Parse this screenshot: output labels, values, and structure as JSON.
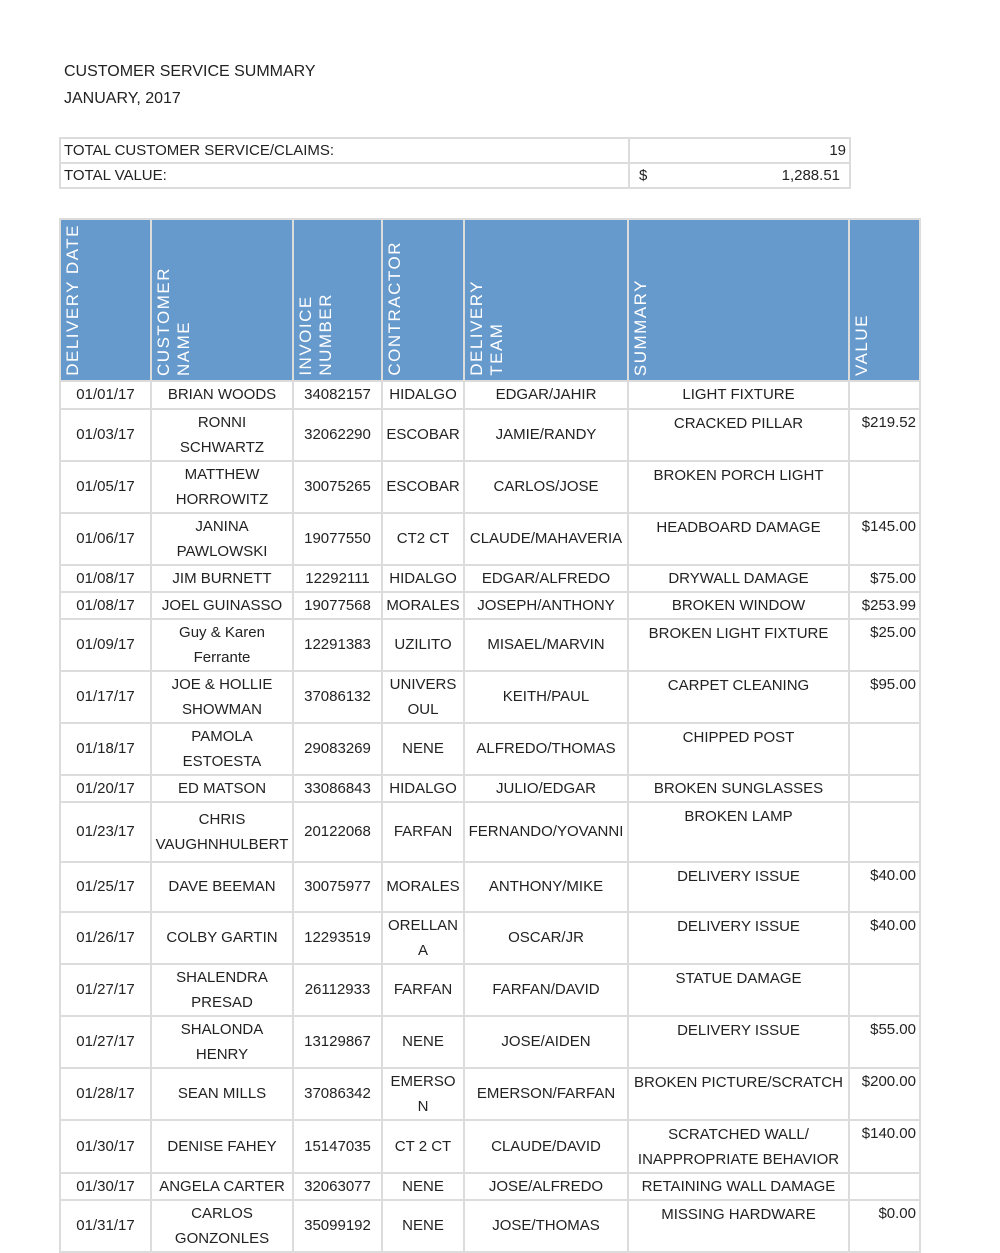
{
  "title": "CUSTOMER SERVICE SUMMARY",
  "subtitle": "JANUARY, 2017",
  "totals": {
    "claims_label": "TOTAL CUSTOMER SERVICE/CLAIMS:",
    "claims_value": "19",
    "value_label": "TOTAL VALUE:",
    "value_currency": "$",
    "value_amount": "1,288.51"
  },
  "header_color": "#6699cc",
  "columns": [
    "DELIVERY DATE",
    "CUSTOMER\nNAME",
    "INVOICE\nNUMBER",
    "CONTRACTOR",
    "DELIVERY\nTEAM",
    "SUMMARY",
    "VALUE"
  ],
  "rows": [
    [
      "01/01/17",
      "BRIAN WOODS",
      "34082157",
      "HIDALGO",
      "EDGAR/JAHIR",
      "LIGHT FIXTURE",
      ""
    ],
    [
      "01/03/17",
      "RONNI SCHWARTZ",
      "32062290",
      "ESCOBAR",
      "JAMIE/RANDY",
      "CRACKED PILLAR",
      "$219.52"
    ],
    [
      "01/05/17",
      "MATTHEW HORROWITZ",
      "30075265",
      "ESCOBAR",
      "CARLOS/JOSE",
      "BROKEN PORCH LIGHT",
      ""
    ],
    [
      "01/06/17",
      "JANINA PAWLOWSKI",
      "19077550",
      "CT2 CT",
      "CLAUDE/MAHAVERIA",
      "HEADBOARD DAMAGE",
      "$145.00"
    ],
    [
      "01/08/17",
      "JIM BURNETT",
      "12292111",
      "HIDALGO",
      "EDGAR/ALFREDO",
      "DRYWALL DAMAGE",
      "$75.00"
    ],
    [
      "01/08/17",
      "JOEL GUINASSO",
      "19077568",
      "MORALES",
      "JOSEPH/ANTHONY",
      "BROKEN WINDOW",
      "$253.99"
    ],
    [
      "01/09/17",
      "Guy & Karen Ferrante",
      "12291383",
      "UZILITO",
      "MISAEL/MARVIN",
      "BROKEN LIGHT FIXTURE",
      "$25.00"
    ],
    [
      "01/17/17",
      "JOE & HOLLIE SHOWMAN",
      "37086132",
      "UNIVERSOUL",
      "KEITH/PAUL",
      "CARPET CLEANING",
      "$95.00"
    ],
    [
      "01/18/17",
      "PAMOLA ESTOESTA",
      "29083269",
      "NENE",
      "ALFREDO/THOMAS",
      "CHIPPED POST",
      ""
    ],
    [
      "01/20/17",
      "ED MATSON",
      "33086843",
      "HIDALGO",
      "JULIO/EDGAR",
      "BROKEN SUNGLASSES",
      ""
    ],
    [
      "01/23/17",
      "CHRIS VAUGHNHULBERT",
      "20122068",
      "FARFAN",
      "FERNANDO/YOVANNI",
      "BROKEN LAMP",
      ""
    ],
    [
      "01/25/17",
      "DAVE BEEMAN",
      "30075977",
      "MORALES",
      "ANTHONY/MIKE",
      "DELIVERY ISSUE",
      "$40.00"
    ],
    [
      "01/26/17",
      "COLBY GARTIN",
      "12293519",
      "ORELLANA",
      "OSCAR/JR",
      "DELIVERY ISSUE",
      "$40.00"
    ],
    [
      "01/27/17",
      "SHALENDRA PRESAD",
      "26112933",
      "FARFAN",
      "FARFAN/DAVID",
      "STATUE DAMAGE",
      ""
    ],
    [
      "01/27/17",
      "SHALONDA HENRY",
      "13129867",
      "NENE",
      "JOSE/AIDEN",
      "DELIVERY ISSUE",
      "$55.00"
    ],
    [
      "01/28/17",
      "SEAN MILLS",
      "37086342",
      "EMERSON",
      "EMERSON/FARFAN",
      "BROKEN PICTURE/SCRATCH",
      "$200.00"
    ],
    [
      "01/30/17",
      "DENISE FAHEY",
      "15147035",
      "CT 2 CT",
      "CLAUDE/DAVID",
      "SCRATCHED WALL/ INAPPROPRIATE BEHAVIOR",
      "$140.00"
    ],
    [
      "01/30/17",
      "ANGELA CARTER",
      "32063077",
      "NENE",
      "JOSE/ALFREDO",
      "RETAINING WALL DAMAGE",
      ""
    ],
    [
      "01/31/17",
      "CARLOS GONZONLES",
      "35099192",
      "NENE",
      "JOSE/THOMAS",
      "MISSING HARDWARE",
      "$0.00"
    ]
  ]
}
